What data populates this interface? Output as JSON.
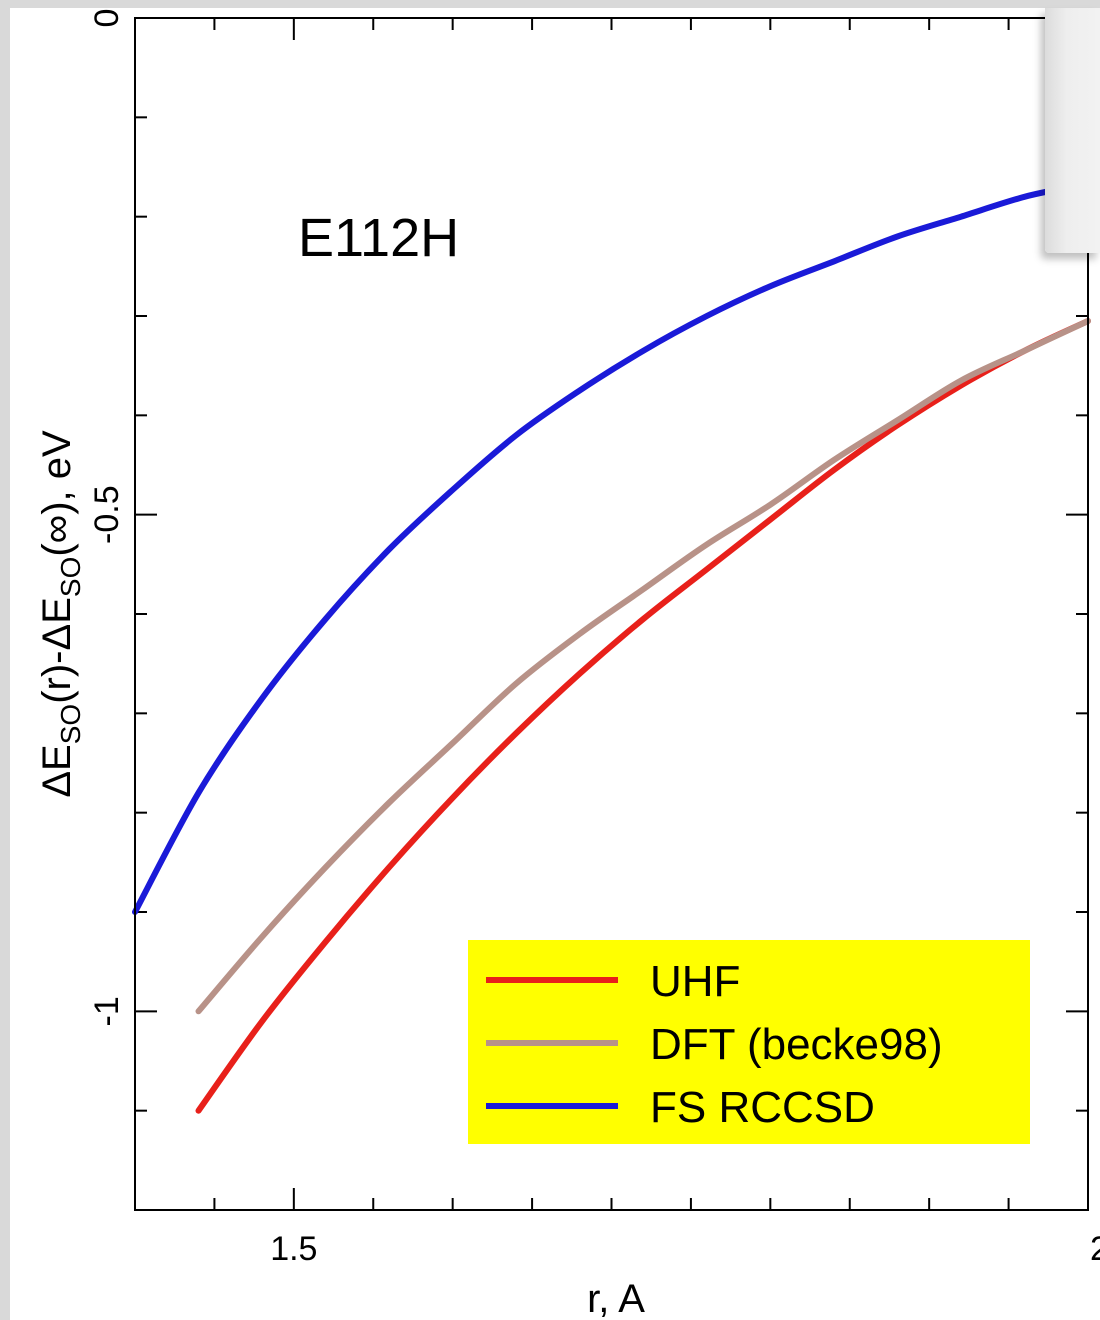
{
  "chart_data": {
    "type": "line",
    "title": "",
    "annotation": "E112H",
    "xlabel": "r, A",
    "ylabel_parts": {
      "p1": "ΔE",
      "sub1": "SO",
      "p2": "(r)-ΔE",
      "sub2": "SO",
      "p3": "(∞), eV"
    },
    "xlim": [
      1.4,
      2.0
    ],
    "ylim": [
      -1.2,
      0
    ],
    "x_ticks": [
      {
        "value": 1.5,
        "label": "1.5"
      },
      {
        "value": 2.0,
        "label": "2"
      }
    ],
    "x_minor_step": 0.05,
    "y_ticks": [
      {
        "value": 0,
        "label": "0"
      },
      {
        "value": -0.5,
        "label": "-0.5"
      },
      {
        "value": -1.0,
        "label": "-1"
      }
    ],
    "y_minor_step": 0.1,
    "grid": false,
    "legend_position": "bottom-right",
    "legend_bg": "#ffff00",
    "series": [
      {
        "name": "UHF",
        "color": "#e8201a",
        "x": [
          1.44,
          1.48,
          1.52,
          1.56,
          1.6,
          1.64,
          1.68,
          1.72,
          1.76,
          1.8,
          1.84,
          1.88,
          1.92,
          1.96,
          2.0
        ],
        "y": [
          -1.1,
          -1.01,
          -0.93,
          -0.855,
          -0.785,
          -0.72,
          -0.66,
          -0.605,
          -0.555,
          -0.505,
          -0.455,
          -0.41,
          -0.37,
          -0.335,
          -0.305
        ]
      },
      {
        "name": "DFT (becke98)",
        "color": "#b89288",
        "x": [
          1.44,
          1.48,
          1.52,
          1.56,
          1.6,
          1.64,
          1.68,
          1.72,
          1.76,
          1.8,
          1.84,
          1.88,
          1.92,
          1.96,
          2.0
        ],
        "y": [
          -1.0,
          -0.925,
          -0.855,
          -0.79,
          -0.73,
          -0.67,
          -0.62,
          -0.575,
          -0.53,
          -0.49,
          -0.445,
          -0.405,
          -0.365,
          -0.335,
          -0.305
        ]
      },
      {
        "name": "FS RCCSD",
        "color": "#1a1ad8",
        "x": [
          1.4,
          1.44,
          1.48,
          1.52,
          1.56,
          1.6,
          1.64,
          1.68,
          1.72,
          1.76,
          1.8,
          1.84,
          1.88,
          1.92,
          1.96,
          1.99
        ],
        "y": [
          -0.9,
          -0.78,
          -0.685,
          -0.605,
          -0.535,
          -0.475,
          -0.42,
          -0.375,
          -0.335,
          -0.3,
          -0.27,
          -0.245,
          -0.22,
          -0.2,
          -0.18,
          -0.17
        ]
      }
    ]
  }
}
